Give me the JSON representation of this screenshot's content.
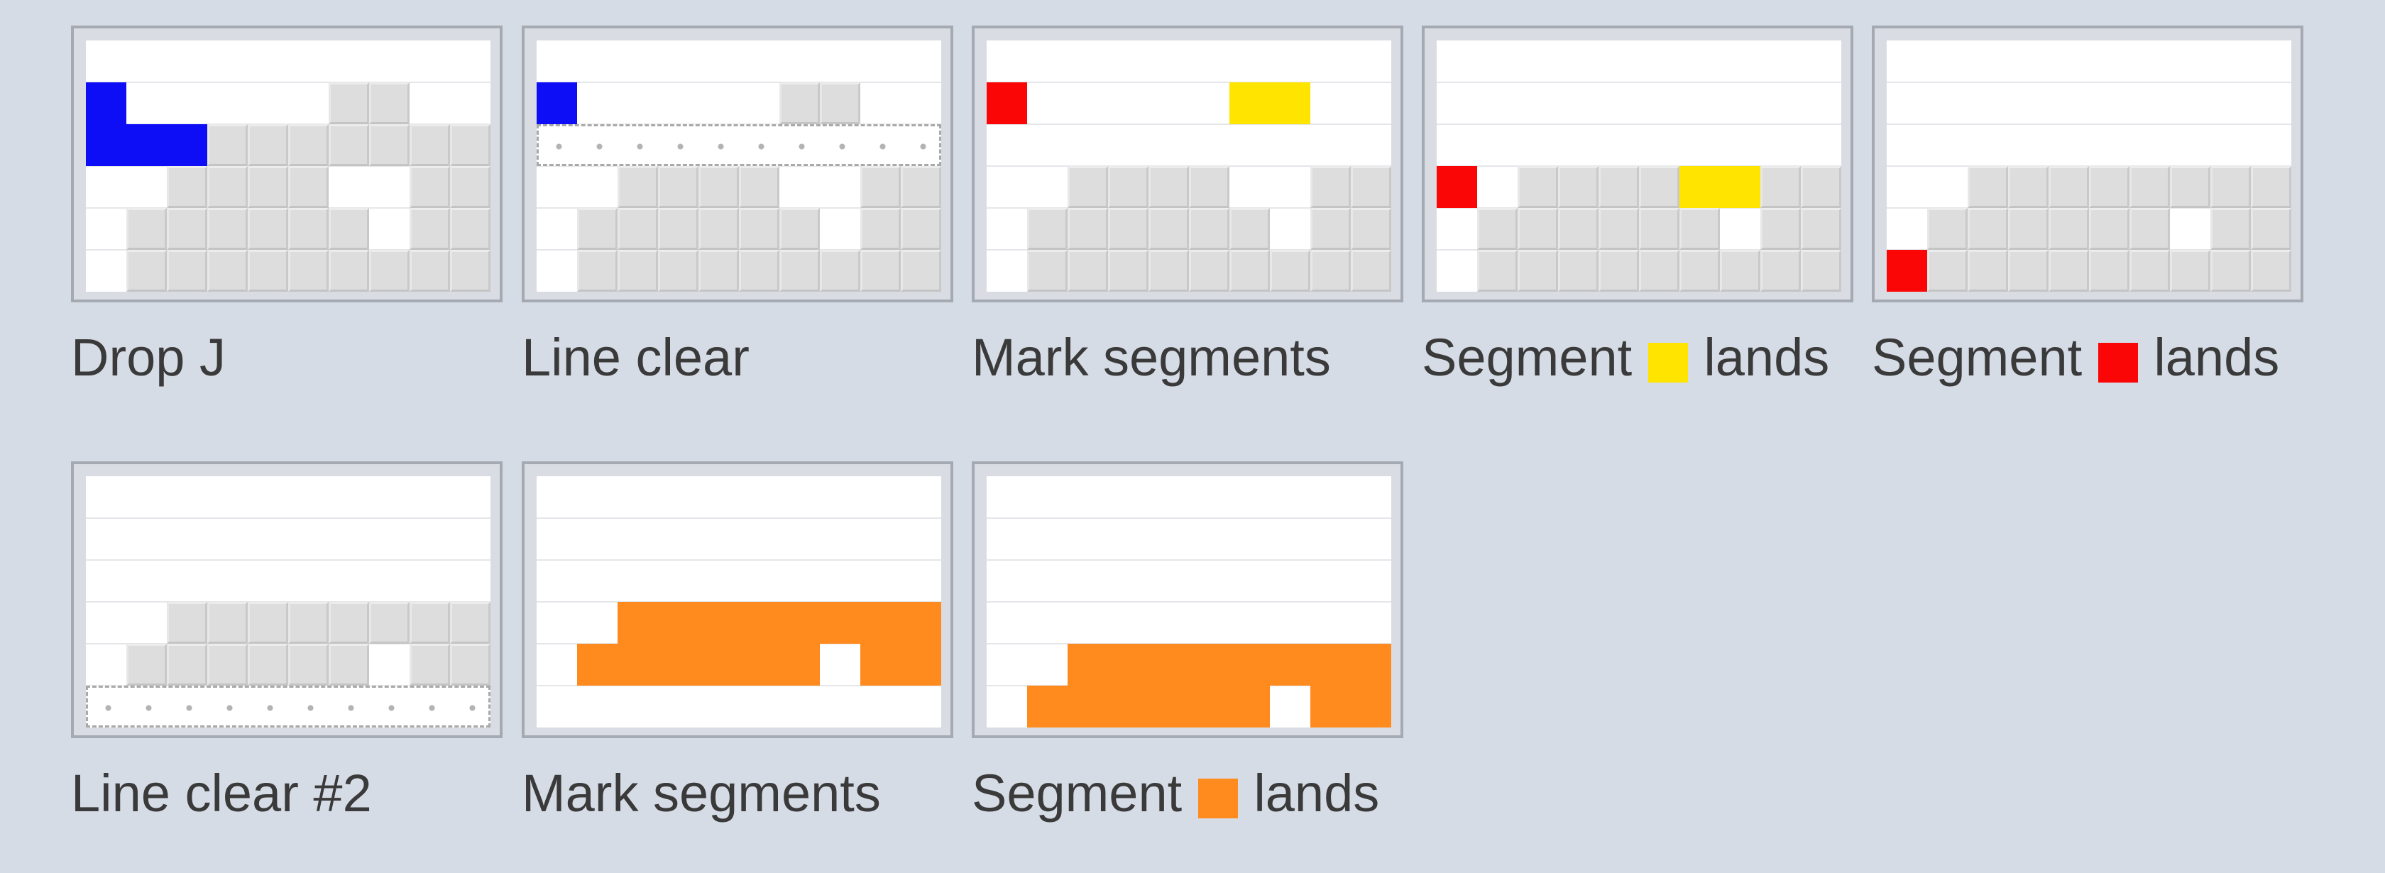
{
  "colors": {
    "background": "#d6dce6",
    "frame": "#a4a9b2",
    "board": "#ffffff",
    "grey_block": "#dddddd",
    "blue": "#0d0ef5",
    "red": "#fa0606",
    "yellow": "#ffe400",
    "orange": "#ff8a1e"
  },
  "panels": [
    {
      "caption": "Drop J",
      "rows": [
        "..........",
        "B.....GG..",
        "BBBGGGGGGG",
        "..GGGG..GG",
        ".GGGGGG.GG",
        ".GGGGGGGGG"
      ]
    },
    {
      "caption": "Line clear",
      "rows": [
        "..........",
        "B.....GG..",
        "##########",
        "..GGGG..GG",
        ".GGGGGG.GG",
        ".GGGGGGGGG"
      ]
    },
    {
      "caption": "Mark segments",
      "rows": [
        "..........",
        "R.....YY..",
        "..........",
        "..GGGG..GG",
        ".GGGGGG.GG",
        ".GGGGGGGGG"
      ]
    },
    {
      "caption_before": "Segment",
      "swatch_color": "yellow",
      "caption_after": "lands",
      "rows": [
        "..........",
        "..........",
        "..........",
        "R.GGGGYYGG",
        ".GGGGGG.GG",
        ".GGGGGGGGG"
      ]
    },
    {
      "caption_before": "Segment",
      "swatch_color": "red",
      "caption_after": "lands",
      "rows": [
        "..........",
        "..........",
        "..........",
        "..GGGGGGGG",
        ".GGGGGG.GG",
        "RGGGGGGGGG"
      ]
    },
    {
      "caption": "Line clear #2",
      "rows": [
        "..........",
        "..........",
        "..........",
        "..GGGGGGGG",
        ".GGGGGG.GG",
        "##########"
      ]
    },
    {
      "caption": "Mark segments",
      "rows": [
        "..........",
        "..........",
        "..........",
        "..OOOOOOOO",
        ".OOOOOO.OO",
        ".........."
      ]
    },
    {
      "caption_before": "Segment",
      "swatch_color": "orange",
      "caption_after": "lands",
      "rows": [
        "..........",
        "..........",
        "..........",
        "..........",
        "..OOOOOOOO",
        ".OOOOOO.OO"
      ]
    }
  ]
}
